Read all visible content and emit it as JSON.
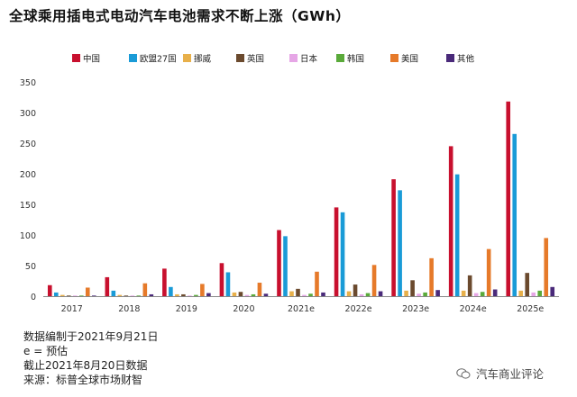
{
  "chart_data": {
    "type": "bar",
    "title": "全球乘用插电式电动汽车电池需求不断上涨（GWh）",
    "categories": [
      "2017",
      "2018",
      "2019",
      "2020",
      "2021e",
      "2022e",
      "2023e",
      "2024e",
      "2025e"
    ],
    "ylim": [
      0,
      350
    ],
    "yticks": [
      0,
      50,
      100,
      150,
      200,
      250,
      300,
      350
    ],
    "grid": false,
    "legend_position": "top",
    "series": [
      {
        "name": "中国",
        "color": "#c8102e",
        "values": [
          18,
          31,
          45,
          54,
          108,
          145,
          191,
          245,
          318
        ]
      },
      {
        "name": "欧盟27国",
        "color": "#1a9bd7",
        "values": [
          6,
          9,
          15,
          39,
          98,
          137,
          173,
          199,
          265
        ]
      },
      {
        "name": "挪威",
        "color": "#e8b04a",
        "values": [
          2,
          2,
          3,
          6,
          8,
          8,
          9,
          9,
          9
        ]
      },
      {
        "name": "英国",
        "color": "#6b4a2e",
        "values": [
          1,
          1,
          3,
          7,
          12,
          19,
          26,
          34,
          38
        ]
      },
      {
        "name": "日本",
        "color": "#e6a6e6",
        "values": [
          1,
          1,
          1,
          2,
          2,
          3,
          4,
          5,
          6
        ]
      },
      {
        "name": "韩国",
        "color": "#5aaa3a",
        "values": [
          1,
          1,
          2,
          3,
          4,
          5,
          6,
          7,
          9
        ]
      },
      {
        "name": "美国",
        "color": "#e67a2a",
        "values": [
          14,
          21,
          20,
          22,
          40,
          51,
          62,
          77,
          95
        ]
      },
      {
        "name": "其他",
        "color": "#4a2a7a",
        "values": [
          1,
          3,
          5,
          4,
          6,
          8,
          10,
          11,
          15
        ]
      }
    ]
  },
  "notes": [
    "数据编制于2021年9月21日",
    "e = 预估",
    "截止2021年8月20日数据",
    "来源：标普全球市场财智"
  ],
  "watermark": {
    "icon": "wechat-icon",
    "text": "汽车商业评论"
  }
}
